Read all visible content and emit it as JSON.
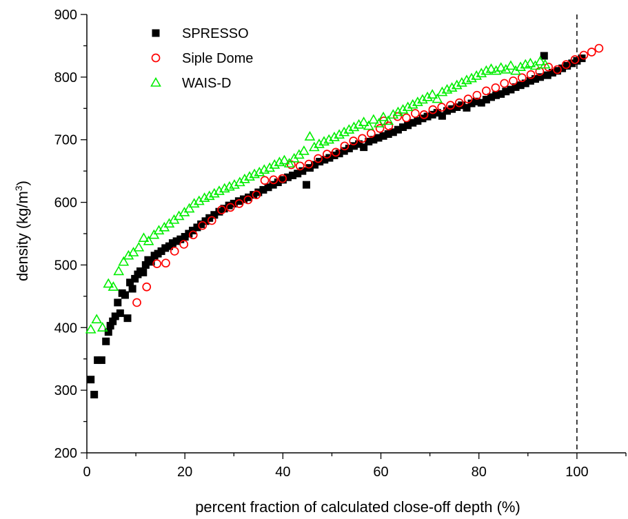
{
  "chart_data": {
    "type": "scatter",
    "xlabel": "percent fraction of calculated close-off depth (%)",
    "ylabel": {
      "main": "density (kg/m",
      "sup": "3",
      "tail": ")"
    },
    "xlim": [
      0,
      110
    ],
    "ylim": [
      200,
      900
    ],
    "x_ticks": [
      0,
      20,
      40,
      60,
      80,
      100
    ],
    "y_ticks": [
      200,
      300,
      400,
      500,
      600,
      700,
      800,
      900
    ],
    "reference_line": {
      "x": 100,
      "style": "dashed"
    },
    "legend_position": "top-left",
    "series": [
      {
        "name": "SPRESSO",
        "marker": "filled-square",
        "color": "#000000",
        "x": [
          0.8,
          1.5,
          2.2,
          3.0,
          3.9,
          4.4,
          4.8,
          5.3,
          5.8,
          6.3,
          6.8,
          7.2,
          7.8,
          8.3,
          8.8,
          9.3,
          9.8,
          10.4,
          10.9,
          11.5,
          12.0,
          12.5,
          13.1,
          13.8,
          14.5,
          15.2,
          16.0,
          16.8,
          17.5,
          18.3,
          19.1,
          20.0,
          20.8,
          21.6,
          22.5,
          23.3,
          24.2,
          25.0,
          26.0,
          27.0,
          28.0,
          29.0,
          30.0,
          31.0,
          32.0,
          33.0,
          34.0,
          35.0,
          36.0,
          37.0,
          38.0,
          39.0,
          40.0,
          41.0,
          42.0,
          43.0,
          44.0,
          44.8,
          45.5,
          46.5,
          47.5,
          48.5,
          49.5,
          50.5,
          51.5,
          52.5,
          53.5,
          54.5,
          55.5,
          56.5,
          57.5,
          58.5,
          59.5,
          60.5,
          61.5,
          62.5,
          63.5,
          64.5,
          65.5,
          66.5,
          67.5,
          68.5,
          69.5,
          70.5,
          71.5,
          72.5,
          73.5,
          74.5,
          75.5,
          76.5,
          77.5,
          78.5,
          79.5,
          80.5,
          81.5,
          82.5,
          83.5,
          84.5,
          85.5,
          86.5,
          87.5,
          88.5,
          89.5,
          90.5,
          91.5,
          92.5,
          93.3,
          94.0,
          95.0,
          96.0,
          97.0,
          98.0,
          99.0,
          100.0,
          101.0
        ],
        "y": [
          317,
          293,
          348,
          348,
          378,
          393,
          403,
          410,
          418,
          440,
          423,
          455,
          452,
          415,
          472,
          462,
          478,
          485,
          490,
          488,
          500,
          508,
          505,
          515,
          518,
          522,
          527,
          530,
          535,
          538,
          541,
          545,
          550,
          555,
          560,
          565,
          570,
          575,
          580,
          585,
          590,
          595,
          598,
          602,
          605,
          608,
          612,
          616,
          620,
          624,
          628,
          632,
          636,
          640,
          643,
          646,
          650,
          628,
          655,
          660,
          665,
          668,
          671,
          675,
          678,
          682,
          686,
          690,
          693,
          688,
          697,
          700,
          703,
          706,
          709,
          712,
          716,
          720,
          723,
          727,
          730,
          734,
          737,
          740,
          743,
          738,
          746,
          749,
          752,
          755,
          751,
          758,
          761,
          759,
          764,
          768,
          771,
          773,
          777,
          780,
          784,
          787,
          790,
          794,
          797,
          800,
          834,
          803,
          807,
          810,
          814,
          818,
          822,
          826,
          830
        ]
      },
      {
        "name": "Siple Dome",
        "marker": "open-circle",
        "color": "#ff0000",
        "x": [
          10.2,
          12.2,
          14.3,
          16.1,
          17.9,
          19.8,
          21.7,
          23.6,
          25.5,
          27.5,
          29.3,
          31.1,
          32.9,
          34.6,
          36.3,
          38.1,
          39.9,
          41.7,
          43.5,
          45.3,
          47.2,
          49.0,
          50.8,
          52.6,
          54.4,
          56.2,
          58.0,
          59.8,
          60.6,
          61.6,
          63.4,
          65.2,
          67.0,
          68.8,
          70.6,
          72.4,
          74.2,
          76.0,
          77.8,
          79.6,
          81.5,
          83.4,
          85.2,
          87.0,
          88.8,
          90.6,
          92.4,
          94.2,
          96.0,
          97.8,
          99.6,
          101.4,
          103.0,
          104.5
        ],
        "y": [
          440,
          465,
          502,
          503,
          522,
          533,
          548,
          563,
          571,
          588,
          592,
          598,
          604,
          612,
          635,
          636,
          638,
          660,
          658,
          661,
          670,
          677,
          680,
          690,
          698,
          702,
          710,
          718,
          730,
          722,
          737,
          735,
          742,
          740,
          748,
          752,
          755,
          759,
          765,
          771,
          778,
          783,
          790,
          794,
          799,
          804,
          809,
          816,
          812,
          820,
          828,
          835,
          840,
          846
        ]
      },
      {
        "name": "WAIS-D",
        "marker": "open-triangle",
        "color": "#00ee00",
        "x": [
          0.8,
          2.0,
          3.2,
          4.4,
          5.4,
          6.5,
          7.5,
          8.5,
          9.5,
          10.6,
          11.6,
          12.6,
          13.7,
          14.7,
          15.8,
          16.8,
          17.8,
          18.8,
          19.9,
          20.9,
          21.9,
          22.9,
          24.0,
          25.0,
          26.0,
          27.0,
          28.1,
          29.1,
          30.1,
          31.2,
          32.2,
          33.2,
          34.2,
          35.2,
          36.2,
          37.3,
          38.3,
          39.3,
          40.3,
          41.3,
          42.3,
          43.3,
          44.3,
          45.5,
          46.4,
          47.4,
          48.4,
          49.4,
          50.5,
          51.5,
          52.5,
          53.5,
          54.5,
          55.5,
          56.5,
          57.5,
          58.5,
          59.6,
          60.5,
          61.5,
          62.5,
          63.5,
          64.5,
          65.5,
          66.5,
          67.5,
          68.5,
          69.5,
          70.5,
          71.5,
          72.5,
          73.5,
          74.5,
          75.5,
          76.5,
          77.5,
          78.5,
          79.5,
          80.5,
          81.5,
          82.5,
          83.5,
          84.5,
          85.5,
          86.5,
          87.5,
          88.5,
          89.5,
          90.5,
          91.5,
          92.5,
          93.5
        ],
        "y": [
          397,
          413,
          400,
          470,
          465,
          490,
          505,
          515,
          520,
          528,
          543,
          538,
          548,
          555,
          560,
          566,
          572,
          578,
          584,
          590,
          598,
          602,
          607,
          610,
          614,
          618,
          622,
          625,
          628,
          632,
          637,
          641,
          645,
          648,
          652,
          655,
          660,
          664,
          667,
          662,
          670,
          676,
          682,
          705,
          688,
          693,
          697,
          700,
          704,
          708,
          712,
          716,
          720,
          724,
          728,
          722,
          732,
          726,
          736,
          730,
          740,
          744,
          748,
          752,
          756,
          760,
          764,
          768,
          772,
          765,
          776,
          780,
          783,
          787,
          791,
          795,
          798,
          802,
          806,
          810,
          813,
          810,
          815,
          812,
          818,
          810,
          816,
          820,
          822,
          818,
          825,
          820
        ]
      }
    ]
  }
}
